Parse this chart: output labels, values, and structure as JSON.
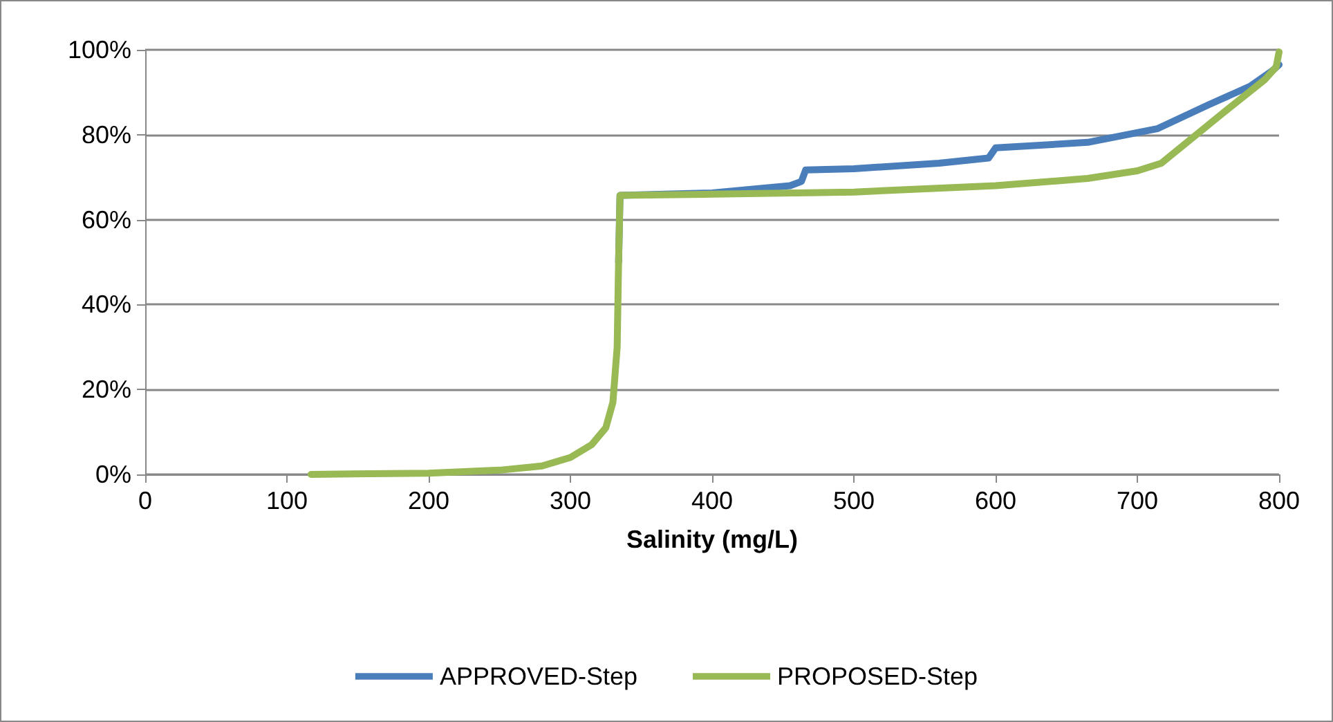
{
  "chart_data": {
    "type": "line",
    "xlabel": "Salinity (mg/L)",
    "xlim": [
      0,
      800
    ],
    "xticks": [
      0,
      100,
      200,
      300,
      400,
      500,
      600,
      700,
      800
    ],
    "ylim": [
      0,
      100
    ],
    "yticks": [
      {
        "value": 0,
        "label": "0%"
      },
      {
        "value": 20,
        "label": "20%"
      },
      {
        "value": 40,
        "label": "40%"
      },
      {
        "value": 60,
        "label": "60%"
      },
      {
        "value": 80,
        "label": "80%"
      },
      {
        "value": 100,
        "label": "100%"
      }
    ],
    "grid": "y",
    "legend": "bottom",
    "marker": "none",
    "line_style": "solid",
    "series": [
      {
        "name": "APPROVED-Step",
        "color": "#4a7ebb",
        "x": [
          334,
          335,
          400,
          455,
          463,
          466,
          500,
          560,
          595,
          600,
          665,
          714,
          750,
          780,
          795,
          800
        ],
        "values": [
          50,
          65.7,
          66.3,
          68,
          69,
          71.7,
          72,
          73.3,
          74.5,
          76.9,
          78.2,
          81.4,
          87,
          91.5,
          95,
          96.5
        ]
      },
      {
        "name": "PROPOSED-Step",
        "color": "#98b954",
        "x": [
          117,
          200,
          250,
          280,
          300,
          315,
          325,
          330,
          333,
          334,
          335,
          400,
          500,
          600,
          665,
          700,
          717,
          760,
          790,
          798,
          800
        ],
        "values": [
          0,
          0.3,
          1,
          2,
          4,
          7,
          11,
          17,
          30,
          50,
          65.7,
          66,
          66.5,
          68,
          69.7,
          71.5,
          73.3,
          85,
          93,
          96,
          99.5
        ]
      }
    ]
  }
}
